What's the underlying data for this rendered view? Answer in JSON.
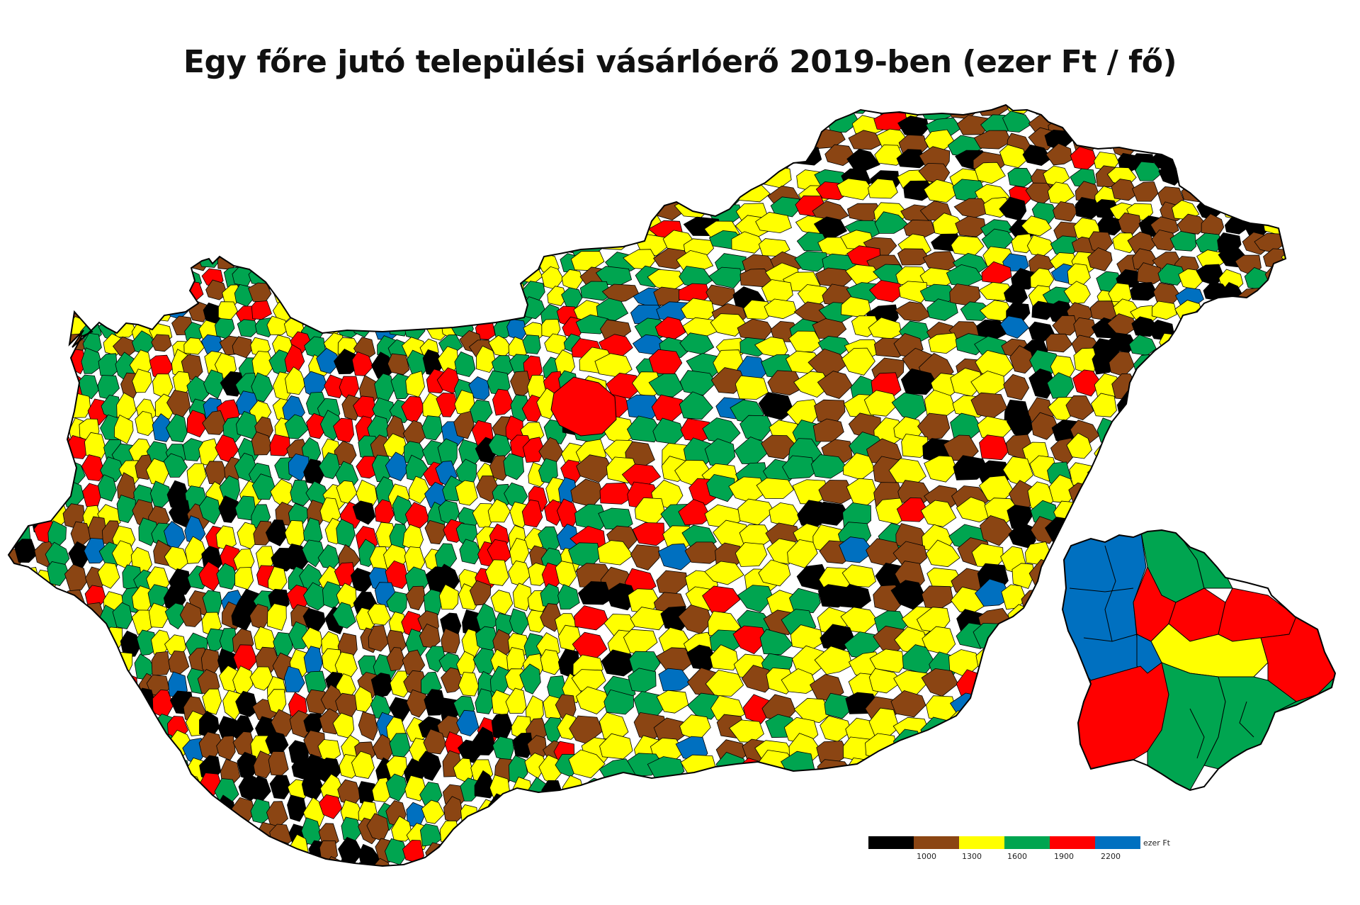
{
  "map": {
    "title": "Egy főre jutó települési vásárlóerő 2019-ben (ezer Ft / fő)",
    "legend": {
      "unit": "ezer Ft",
      "ticks": [
        "1000",
        "1300",
        "1600",
        "1900",
        "2200"
      ],
      "classes": [
        {
          "color": "#000000"
        },
        {
          "color": "#8B4513"
        },
        {
          "color": "#FFFF00"
        },
        {
          "color": "#00A550"
        },
        {
          "color": "#FF0000"
        },
        {
          "color": "#0070C0"
        }
      ]
    },
    "colors": {
      "border": "#000000",
      "background": "#ffffff"
    }
  }
}
